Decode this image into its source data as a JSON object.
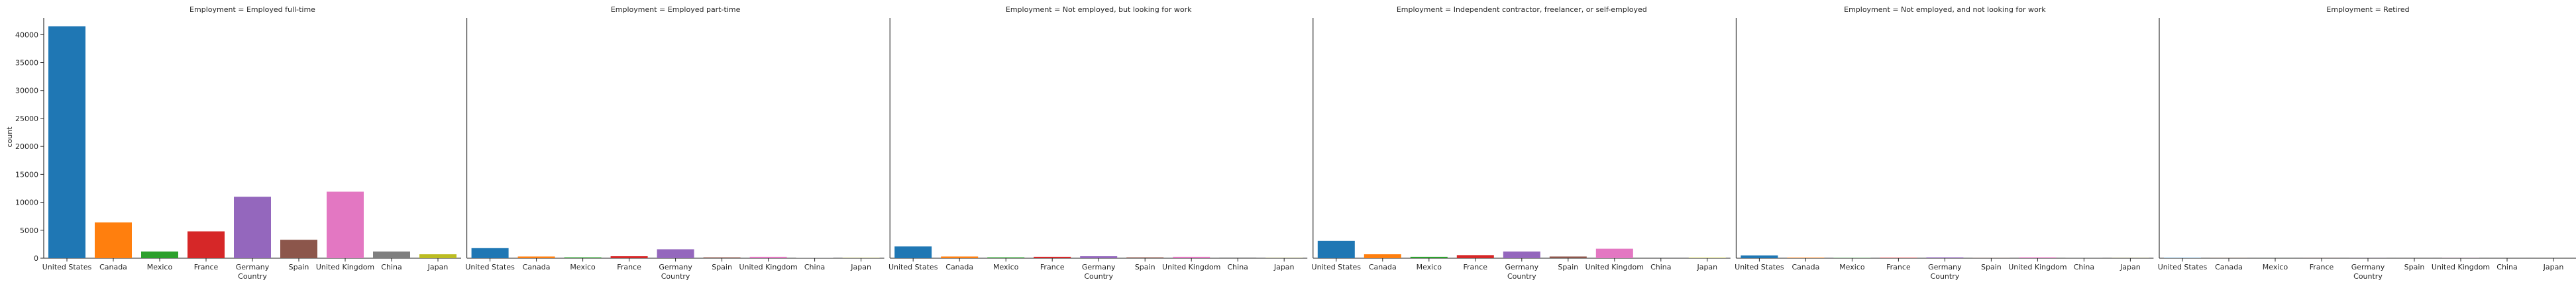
{
  "chart_data": {
    "type": "bar",
    "title": "",
    "xlabel": "Country",
    "ylabel": "count",
    "ylim": [
      0,
      43000
    ],
    "yticks": [
      0,
      5000,
      10000,
      15000,
      20000,
      25000,
      30000,
      35000,
      40000
    ],
    "categories": [
      "United States",
      "Canada",
      "Mexico",
      "France",
      "Germany",
      "Spain",
      "United Kingdom",
      "China",
      "Japan"
    ],
    "colors": [
      "#1f77b4",
      "#ff7f0e",
      "#2ca02c",
      "#d62728",
      "#9467bd",
      "#8c564b",
      "#e377c2",
      "#7f7f7f",
      "#bcbd22"
    ],
    "panels": [
      {
        "title": "Employment = Employed full-time",
        "values": [
          41500,
          6400,
          1200,
          4800,
          11000,
          3300,
          11900,
          1200,
          700
        ]
      },
      {
        "title": "Employment = Employed part-time",
        "values": [
          1800,
          300,
          150,
          350,
          1600,
          150,
          250,
          60,
          40
        ]
      },
      {
        "title": "Employment = Not employed, but looking for work",
        "values": [
          2100,
          300,
          150,
          250,
          350,
          150,
          250,
          120,
          30
        ]
      },
      {
        "title": "Employment = Independent contractor, freelancer, or self-employed",
        "values": [
          3100,
          700,
          250,
          550,
          1200,
          300,
          1700,
          100,
          80
        ]
      },
      {
        "title": "Employment = Not employed, and not looking for work",
        "values": [
          500,
          100,
          50,
          80,
          150,
          30,
          150,
          20,
          20
        ]
      },
      {
        "title": "Employment = Retired",
        "values": [
          60,
          10,
          5,
          10,
          15,
          5,
          20,
          2,
          2
        ]
      }
    ]
  }
}
